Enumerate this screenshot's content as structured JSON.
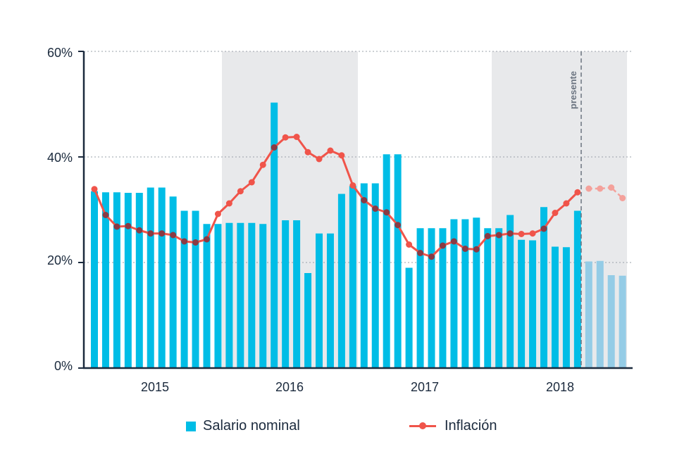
{
  "chart_data": {
    "type": "bar",
    "y_ticks": [
      "0%",
      "20%",
      "40%",
      "60%"
    ],
    "ylim": [
      0,
      60
    ],
    "x_year_labels": [
      "2015",
      "2016",
      "2017",
      "2018"
    ],
    "presente_label": "presente",
    "grid": "dotted horizontal at 20%, 40%, 60%",
    "shaded_periods": [
      "2016",
      "2018"
    ],
    "series": [
      {
        "name": "Salario nominal",
        "type": "bar",
        "color": "#00bde6",
        "forecast_color": "#94cce6",
        "values": [
          33.5,
          33.3,
          33.3,
          33.2,
          33.2,
          34.2,
          34.2,
          32.5,
          29.8,
          29.8,
          27.3,
          27.3,
          27.5,
          27.5,
          27.5,
          27.3,
          50.3,
          28.0,
          28.0,
          18.0,
          25.5,
          25.5,
          33.0,
          34.5,
          35.0,
          35.0,
          40.5,
          40.5,
          19.0,
          26.5,
          26.5,
          26.5,
          28.2,
          28.2,
          28.5,
          26.5,
          26.5,
          29.0,
          24.3,
          24.2,
          30.5,
          23.0,
          22.9,
          29.8,
          20.2,
          20.3,
          17.6,
          17.5
        ],
        "forecast_from_index": 44
      },
      {
        "name": "Inflación",
        "type": "line",
        "color": "#f0544a",
        "overlap_color": "#8a3a44",
        "forecast_color": "#f4a19b",
        "values": [
          33.9,
          29.0,
          26.8,
          26.9,
          26.1,
          25.5,
          25.5,
          25.2,
          24.0,
          23.8,
          24.4,
          29.2,
          31.2,
          33.5,
          35.2,
          38.5,
          41.8,
          43.7,
          43.8,
          40.9,
          39.6,
          41.2,
          40.3,
          34.6,
          31.8,
          30.2,
          29.5,
          27.1,
          23.4,
          21.8,
          21.1,
          23.2,
          24.0,
          22.6,
          22.5,
          25.0,
          25.2,
          25.5,
          25.4,
          25.5,
          26.4,
          29.4,
          31.2,
          33.3,
          34.0,
          34.0,
          34.2,
          32.2
        ],
        "forecast_from_index": 44
      }
    ]
  }
}
